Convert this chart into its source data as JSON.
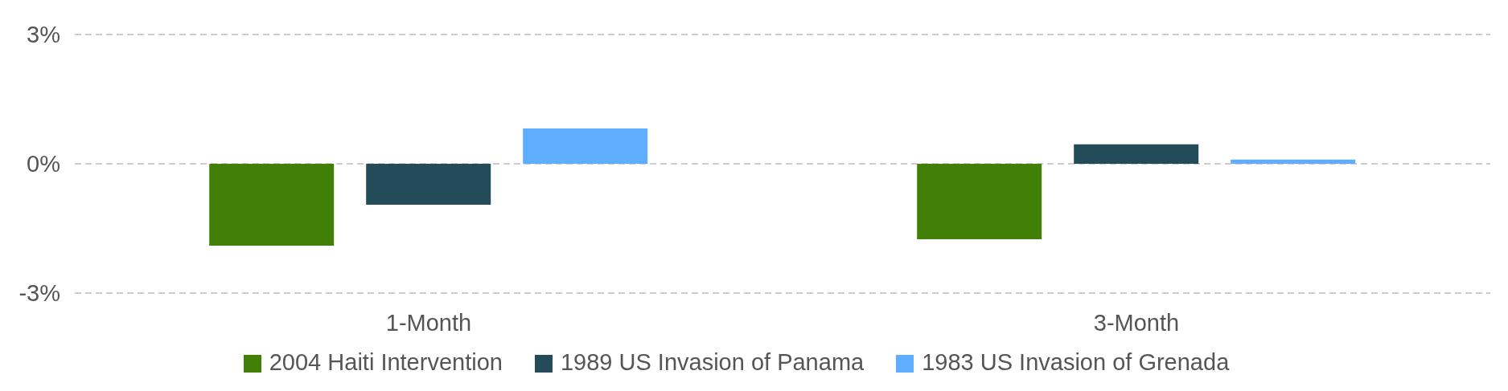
{
  "chart_data": {
    "type": "bar",
    "categories": [
      "1-Month",
      "3-Month"
    ],
    "series": [
      {
        "name": "2004 Haiti Intervention",
        "color": "#417f07",
        "values": [
          -1.9,
          -1.75
        ]
      },
      {
        "name": "1989 US Invasion of Panama",
        "color": "#244c58",
        "values": [
          -0.95,
          0.45
        ]
      },
      {
        "name": "1983 US Invasion of Grenada",
        "color": "#5eaefd",
        "values": [
          0.82,
          0.1
        ]
      }
    ],
    "ylim": [
      -3,
      3
    ],
    "yticks": [
      {
        "value": -3,
        "label": "-3%"
      },
      {
        "value": 0,
        "label": "0%"
      },
      {
        "value": 3,
        "label": "3%"
      }
    ],
    "grid": "y",
    "legend": "bottom"
  }
}
